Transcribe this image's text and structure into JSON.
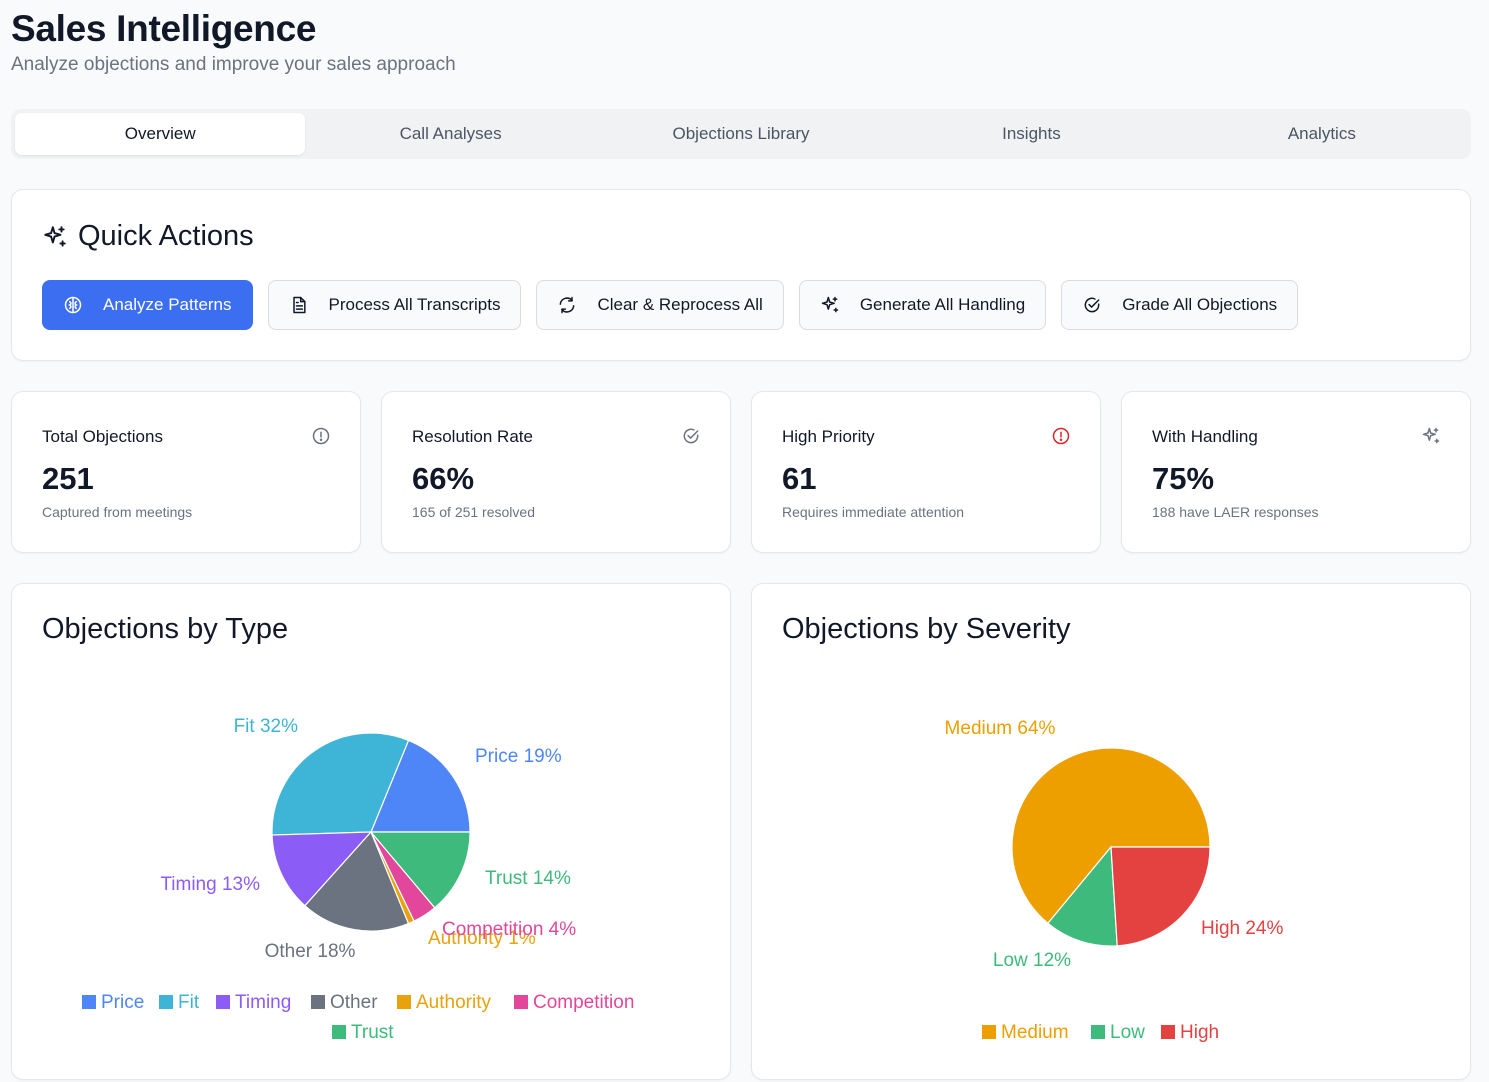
{
  "header": {
    "title": "Sales Intelligence",
    "subtitle": "Analyze objections and improve your sales approach"
  },
  "tabs": [
    {
      "label": "Overview",
      "active": true
    },
    {
      "label": "Call Analyses",
      "active": false
    },
    {
      "label": "Objections Library",
      "active": false
    },
    {
      "label": "Insights",
      "active": false
    },
    {
      "label": "Analytics",
      "active": false
    }
  ],
  "quick_actions": {
    "title": "Quick Actions",
    "title_icon": "sparkles-icon",
    "buttons": [
      {
        "label": "Analyze Patterns",
        "icon": "brain-icon",
        "primary": true
      },
      {
        "label": "Process All Transcripts",
        "icon": "file-text-icon",
        "primary": false
      },
      {
        "label": "Clear & Reprocess All",
        "icon": "refresh-icon",
        "primary": false
      },
      {
        "label": "Generate All Handling",
        "icon": "sparkles-icon",
        "primary": false
      },
      {
        "label": "Grade All Objections",
        "icon": "check-circle-icon",
        "primary": false
      }
    ]
  },
  "stats": [
    {
      "label": "Total Objections",
      "value": "251",
      "sub": "Captured from meetings",
      "icon": "alert-circle-icon",
      "icon_color": "#6b7280"
    },
    {
      "label": "Resolution Rate",
      "value": "66%",
      "sub": "165 of 251 resolved",
      "icon": "check-circle-icon",
      "icon_color": "#6b7280"
    },
    {
      "label": "High Priority",
      "value": "61",
      "sub": "Requires immediate attention",
      "icon": "alert-circle-icon",
      "icon_color": "#dc2626"
    },
    {
      "label": "With Handling",
      "value": "75%",
      "sub": "188 have LAER responses",
      "icon": "sparkles-icon",
      "icon_color": "#6b7280"
    }
  ],
  "colors": {
    "primary": "#3b6ef0",
    "price": "#4f86f7",
    "fit": "#3eb4d6",
    "timing": "#8b5cf6",
    "other": "#6b7280",
    "authority": "#e8a20c",
    "competition": "#e2479b",
    "trust": "#3dba7c",
    "medium": "#ee9f00",
    "low": "#3dba7c",
    "high": "#e44141"
  },
  "chart_data": [
    {
      "type": "pie",
      "title": "Objections by Type",
      "slices": [
        {
          "name": "Price",
          "value": 19,
          "label": "Price 19%",
          "color": "#4f86f7"
        },
        {
          "name": "Fit",
          "value": 32,
          "label": "Fit 32%",
          "color": "#3eb4d6"
        },
        {
          "name": "Timing",
          "value": 13,
          "label": "Timing 13%",
          "color": "#8b5cf6"
        },
        {
          "name": "Other",
          "value": 18,
          "label": "Other 18%",
          "color": "#6b7280"
        },
        {
          "name": "Authority",
          "value": 1,
          "label": "Authority 1%",
          "color": "#e8a20c"
        },
        {
          "name": "Competition",
          "value": 4,
          "label": "Competition 4%",
          "color": "#e2479b"
        },
        {
          "name": "Trust",
          "value": 14,
          "label": "Trust 14%",
          "color": "#3dba7c"
        }
      ],
      "legend": [
        "Price",
        "Fit",
        "Timing",
        "Other",
        "Authority",
        "Competition",
        "Trust"
      ],
      "legend_position": "bottom"
    },
    {
      "type": "pie",
      "title": "Objections by Severity",
      "slices": [
        {
          "name": "Medium",
          "value": 64,
          "label": "Medium 64%",
          "color": "#ee9f00"
        },
        {
          "name": "Low",
          "value": 12,
          "label": "Low 12%",
          "color": "#3dba7c"
        },
        {
          "name": "High",
          "value": 24,
          "label": "High 24%",
          "color": "#e44141"
        }
      ],
      "legend": [
        "Medium",
        "Low",
        "High"
      ],
      "legend_position": "bottom"
    }
  ]
}
